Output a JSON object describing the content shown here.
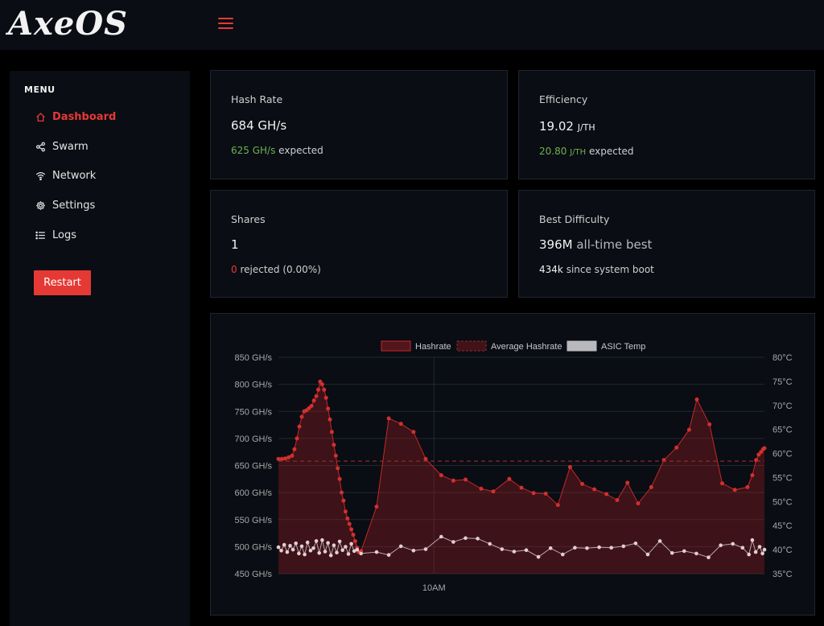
{
  "app": {
    "logo": "AxeOS"
  },
  "sidebar": {
    "menu_title": "MENU",
    "items": [
      {
        "label": "Dashboard",
        "icon": "home-icon",
        "active": true
      },
      {
        "label": "Swarm",
        "icon": "share-icon",
        "active": false
      },
      {
        "label": "Network",
        "icon": "wifi-icon",
        "active": false
      },
      {
        "label": "Settings",
        "icon": "gear-icon",
        "active": false
      },
      {
        "label": "Logs",
        "icon": "list-icon",
        "active": false
      }
    ],
    "restart_label": "Restart"
  },
  "cards": {
    "hashrate": {
      "title": "Hash Rate",
      "value": "684 GH/s",
      "expected_value": "625 GH/s",
      "expected_label": "expected"
    },
    "efficiency": {
      "title": "Efficiency",
      "value": "19.02",
      "unit": "J/TH",
      "expected_value": "20.80",
      "expected_unit": "J/TH",
      "expected_label": "expected"
    },
    "shares": {
      "title": "Shares",
      "value": "1",
      "rejected_count": "0",
      "rejected_label": "rejected (0.00%)"
    },
    "best_difficulty": {
      "title": "Best Difficulty",
      "value": "396M",
      "value_suffix": "all-time best",
      "since_boot_value": "434k",
      "since_boot_label": "since system boot"
    }
  },
  "colors": {
    "accent": "#e53935",
    "green": "#6db34f",
    "temp": "#d9c3c8"
  },
  "chart_data": {
    "type": "line",
    "legend": [
      "Hashrate",
      "Average Hashrate",
      "ASIC Temp"
    ],
    "y_left": {
      "ticks": [
        "850 GH/s",
        "800 GH/s",
        "750 GH/s",
        "700 GH/s",
        "650 GH/s",
        "600 GH/s",
        "550 GH/s",
        "500 GH/s",
        "450 GH/s"
      ],
      "range": [
        450,
        850
      ]
    },
    "y_right": {
      "ticks": [
        "80°C",
        "75°C",
        "70°C",
        "65°C",
        "60°C",
        "55°C",
        "50°C",
        "45°C",
        "40°C",
        "35°C"
      ],
      "range": [
        35,
        80
      ]
    },
    "x_ticks": [
      "10AM"
    ],
    "x_range": [
      0,
      100
    ],
    "x_tick_positions": [
      32
    ],
    "average_hashrate": 658,
    "hashrate": [
      [
        0,
        662
      ],
      [
        0.7,
        662
      ],
      [
        1.4,
        663
      ],
      [
        2.1,
        665
      ],
      [
        2.8,
        668
      ],
      [
        3.3,
        680
      ],
      [
        3.8,
        700
      ],
      [
        4.3,
        722
      ],
      [
        4.8,
        740
      ],
      [
        5.3,
        750
      ],
      [
        5.8,
        752
      ],
      [
        6.3,
        756
      ],
      [
        6.8,
        760
      ],
      [
        7.3,
        770
      ],
      [
        7.8,
        778
      ],
      [
        8.2,
        790
      ],
      [
        8.6,
        805
      ],
      [
        9.0,
        800
      ],
      [
        9.4,
        790
      ],
      [
        9.8,
        775
      ],
      [
        10.2,
        755
      ],
      [
        10.6,
        735
      ],
      [
        11.0,
        712
      ],
      [
        11.4,
        688
      ],
      [
        11.8,
        668
      ],
      [
        12.2,
        645
      ],
      [
        12.6,
        625
      ],
      [
        13.0,
        600
      ],
      [
        13.4,
        585
      ],
      [
        13.8,
        565
      ],
      [
        14.2,
        552
      ],
      [
        14.6,
        542
      ],
      [
        15.0,
        532
      ],
      [
        15.4,
        522
      ],
      [
        15.8,
        510
      ],
      [
        16.2,
        498
      ],
      [
        16.5,
        490
      ],
      [
        17.0,
        492
      ],
      [
        20.2,
        574
      ],
      [
        22.7,
        737
      ],
      [
        25.2,
        727
      ],
      [
        27.8,
        712
      ],
      [
        30.3,
        662
      ],
      [
        33.5,
        632
      ],
      [
        36.0,
        622
      ],
      [
        38.5,
        624
      ],
      [
        41.7,
        607
      ],
      [
        44.2,
        602
      ],
      [
        47.5,
        625
      ],
      [
        50.0,
        609
      ],
      [
        52.5,
        599
      ],
      [
        55.0,
        598
      ],
      [
        57.5,
        577
      ],
      [
        60.0,
        647
      ],
      [
        62.5,
        616
      ],
      [
        65.0,
        606
      ],
      [
        67.5,
        597
      ],
      [
        69.7,
        586
      ],
      [
        71.8,
        618
      ],
      [
        74.0,
        580
      ],
      [
        76.7,
        610
      ],
      [
        79.3,
        660
      ],
      [
        81.9,
        683
      ],
      [
        84.5,
        716
      ],
      [
        86.1,
        772
      ],
      [
        88.7,
        726
      ],
      [
        91.3,
        617
      ],
      [
        93.9,
        605
      ],
      [
        96.5,
        610
      ],
      [
        97.5,
        632
      ],
      [
        98.3,
        660
      ],
      [
        98.8,
        670
      ],
      [
        99.3,
        675
      ],
      [
        99.7,
        680
      ],
      [
        100,
        682
      ]
    ],
    "asic_temp": [
      [
        0,
        40.5
      ],
      [
        0.6,
        39.8
      ],
      [
        1.2,
        41.0
      ],
      [
        1.8,
        39.5
      ],
      [
        2.4,
        40.8
      ],
      [
        3.0,
        40.0
      ],
      [
        3.6,
        41.3
      ],
      [
        4.2,
        39.2
      ],
      [
        4.8,
        40.7
      ],
      [
        5.4,
        39.0
      ],
      [
        6.0,
        41.5
      ],
      [
        6.6,
        39.8
      ],
      [
        7.2,
        40.3
      ],
      [
        7.8,
        41.8
      ],
      [
        8.4,
        39.3
      ],
      [
        9.0,
        42.0
      ],
      [
        9.6,
        39.6
      ],
      [
        10.2,
        41.4
      ],
      [
        10.8,
        38.8
      ],
      [
        11.4,
        40.9
      ],
      [
        12.0,
        39.4
      ],
      [
        12.6,
        41.7
      ],
      [
        13.2,
        39.9
      ],
      [
        13.8,
        40.6
      ],
      [
        14.4,
        39.1
      ],
      [
        15.0,
        41.2
      ],
      [
        15.6,
        39.7
      ],
      [
        16.2,
        40.0
      ],
      [
        17.0,
        39.2
      ],
      [
        20.2,
        39.5
      ],
      [
        22.7,
        38.9
      ],
      [
        25.2,
        40.7
      ],
      [
        27.8,
        39.8
      ],
      [
        30.3,
        40.1
      ],
      [
        33.5,
        42.7
      ],
      [
        36.0,
        41.6
      ],
      [
        38.5,
        42.4
      ],
      [
        41.0,
        42.3
      ],
      [
        43.5,
        41.2
      ],
      [
        46.0,
        40.1
      ],
      [
        48.5,
        39.6
      ],
      [
        51.0,
        39.9
      ],
      [
        53.5,
        38.5
      ],
      [
        56.0,
        40.3
      ],
      [
        58.5,
        39.0
      ],
      [
        61.0,
        40.4
      ],
      [
        63.5,
        40.3
      ],
      [
        66.0,
        40.5
      ],
      [
        68.5,
        40.4
      ],
      [
        71.0,
        40.7
      ],
      [
        73.5,
        41.3
      ],
      [
        76.0,
        39.0
      ],
      [
        78.5,
        41.8
      ],
      [
        81.0,
        39.3
      ],
      [
        83.5,
        39.7
      ],
      [
        86.0,
        39.2
      ],
      [
        88.5,
        38.4
      ],
      [
        91.0,
        40.9
      ],
      [
        93.5,
        41.2
      ],
      [
        95.5,
        40.4
      ],
      [
        96.8,
        39.0
      ],
      [
        97.5,
        42.0
      ],
      [
        98.2,
        39.5
      ],
      [
        99.0,
        40.6
      ],
      [
        99.6,
        39.2
      ],
      [
        100,
        40.0
      ]
    ]
  }
}
